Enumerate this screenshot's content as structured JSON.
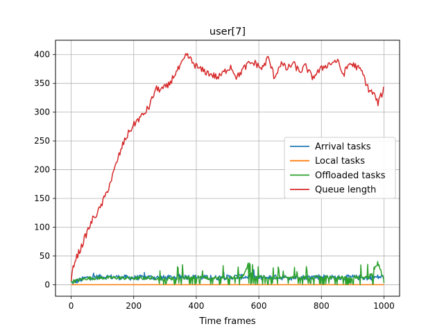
{
  "chart_data": {
    "type": "line",
    "title": "user[7]",
    "xlabel": "Time frames",
    "ylabel": "",
    "xlim": [
      -50,
      1050
    ],
    "ylim": [
      -20,
      425
    ],
    "xticks": [
      0,
      200,
      400,
      600,
      800,
      1000
    ],
    "yticks": [
      0,
      50,
      100,
      150,
      200,
      250,
      300,
      350,
      400
    ],
    "grid": true,
    "legend_position": "center-right",
    "series": [
      {
        "name": "Arrival tasks",
        "color": "#1f77b4",
        "style": "noisy band around mean ~12, range 5-28",
        "x": [
          0,
          50,
          100,
          150,
          200,
          250,
          300,
          350,
          400,
          450,
          500,
          550,
          600,
          650,
          700,
          750,
          800,
          850,
          900,
          950,
          1000
        ],
        "y": [
          3,
          12,
          14,
          13,
          12,
          13,
          12,
          14,
          13,
          12,
          13,
          14,
          12,
          13,
          12,
          13,
          14,
          12,
          13,
          12,
          14
        ]
      },
      {
        "name": "Local tasks",
        "color": "#ff7f0e",
        "x": [
          0,
          1000
        ],
        "y": [
          0,
          0
        ]
      },
      {
        "name": "Offloaded tasks",
        "color": "#2ca02c",
        "x": [
          0,
          50,
          100,
          150,
          200,
          250,
          300,
          350,
          400,
          450,
          500,
          550,
          570,
          580,
          600,
          650,
          700,
          750,
          800,
          850,
          900,
          950,
          980,
          1000
        ],
        "y": [
          5,
          11,
          12,
          12,
          11,
          12,
          10,
          12,
          13,
          11,
          12,
          15,
          40,
          12,
          14,
          12,
          13,
          12,
          14,
          12,
          13,
          12,
          38,
          10
        ]
      },
      {
        "name": "Queue length",
        "color": "#d62728",
        "x": [
          0,
          10,
          30,
          50,
          70,
          90,
          110,
          130,
          150,
          170,
          190,
          210,
          230,
          250,
          270,
          290,
          310,
          330,
          350,
          370,
          390,
          410,
          430,
          450,
          470,
          490,
          510,
          530,
          550,
          570,
          590,
          610,
          630,
          650,
          670,
          690,
          710,
          730,
          750,
          770,
          790,
          810,
          830,
          850,
          870,
          890,
          910,
          930,
          950,
          970,
          980,
          1000
        ],
        "y": [
          8,
          40,
          62,
          90,
          115,
          130,
          155,
          185,
          220,
          250,
          270,
          285,
          295,
          310,
          340,
          340,
          345,
          365,
          380,
          400,
          385,
          375,
          370,
          365,
          360,
          370,
          380,
          360,
          375,
          385,
          385,
          375,
          395,
          360,
          385,
          375,
          385,
          370,
          380,
          360,
          370,
          380,
          385,
          390,
          365,
          385,
          380,
          370,
          340,
          330,
          315,
          340
        ]
      }
    ]
  }
}
